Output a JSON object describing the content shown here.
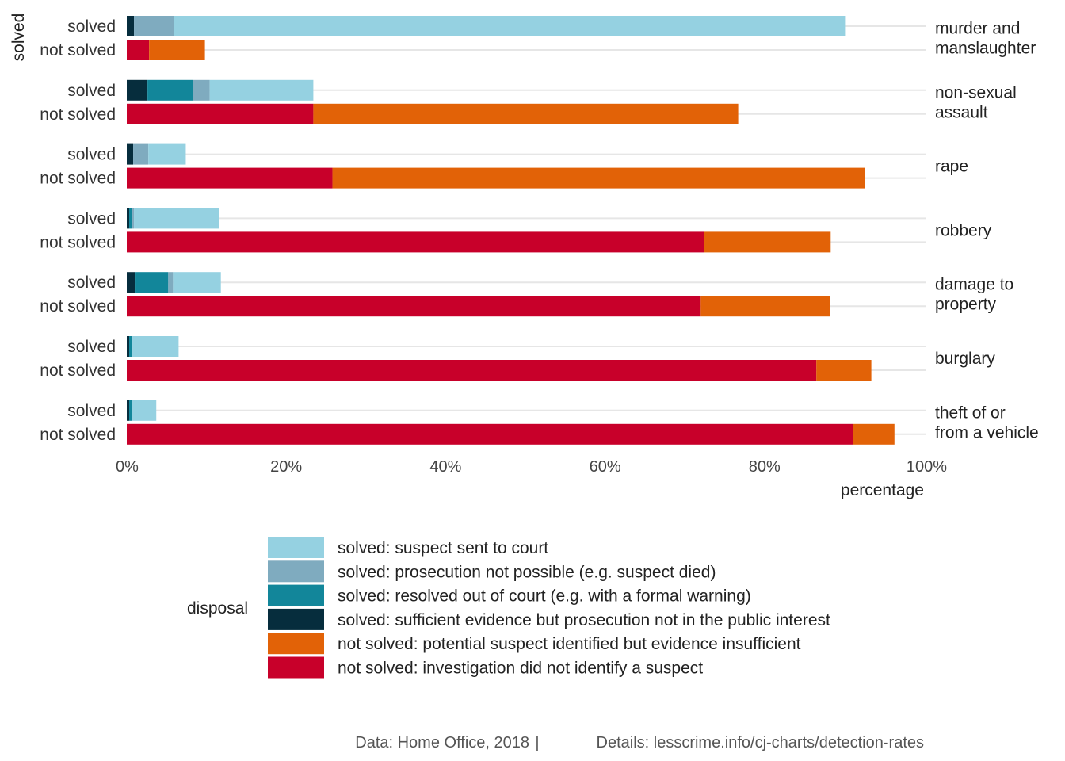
{
  "chart_data": {
    "type": "bar",
    "orientation": "horizontal",
    "stacked": true,
    "facet_labels": [
      [
        "murder and",
        "manslaughter"
      ],
      [
        "non-sexual",
        "assault"
      ],
      [
        "rape"
      ],
      [
        "robbery"
      ],
      [
        "damage to",
        "property"
      ],
      [
        "burglary"
      ],
      [
        "theft of or",
        "from a vehicle"
      ]
    ],
    "row_labels": [
      "solved",
      "not solved"
    ],
    "y_axis_title": "solved",
    "x_axis_title": "percentage",
    "x_ticks": [
      0,
      20,
      40,
      60,
      80,
      100
    ],
    "x_tick_labels": [
      "0%",
      "20%",
      "40%",
      "60%",
      "80%",
      "100%"
    ],
    "xlim": [
      0,
      100
    ],
    "grid": true,
    "series": [
      {
        "name": "solved: suspect sent to court",
        "color": "#95d1e1"
      },
      {
        "name": "solved: prosecution not possible (e.g. suspect died)",
        "color": "#7fabbf"
      },
      {
        "name": "solved: resolved out of court (e.g. with a formal warning)",
        "color": "#12869a"
      },
      {
        "name": "solved: sufficient evidence but prosecution not in the public interest",
        "color": "#062d3d"
      },
      {
        "name": "not solved: potential suspect identified but evidence insufficient",
        "color": "#e26207"
      },
      {
        "name": "not solved: investigation did not identify a suspect",
        "color": "#c8002a"
      }
    ],
    "stack_order_solved": [
      "solved: sufficient evidence but prosecution not in the public interest",
      "solved: resolved out of court (e.g. with a formal warning)",
      "solved: prosecution not possible (e.g. suspect died)",
      "solved: suspect sent to court"
    ],
    "stack_order_not_solved": [
      "not solved: investigation did not identify a suspect",
      "not solved: potential suspect identified but evidence insufficient"
    ],
    "values": [
      {
        "solved": [
          0.9,
          0.0,
          5.0,
          84.2
        ],
        "not_solved": [
          2.8,
          7.0
        ]
      },
      {
        "solved": [
          2.6,
          5.7,
          2.1,
          13.0
        ],
        "not_solved": [
          23.4,
          53.3
        ]
      },
      {
        "solved": [
          0.8,
          0.0,
          1.9,
          4.7
        ],
        "not_solved": [
          25.8,
          66.8
        ]
      },
      {
        "solved": [
          0.3,
          0.4,
          0.2,
          10.7
        ],
        "not_solved": [
          72.4,
          15.9
        ]
      },
      {
        "solved": [
          1.0,
          4.2,
          0.6,
          6.0
        ],
        "not_solved": [
          72.0,
          16.2
        ]
      },
      {
        "solved": [
          0.3,
          0.4,
          0.0,
          5.8
        ],
        "not_solved": [
          86.5,
          6.9
        ]
      },
      {
        "solved": [
          0.3,
          0.3,
          0.0,
          3.1
        ],
        "not_solved": [
          91.1,
          5.2
        ]
      }
    ]
  },
  "legend": {
    "title": "disposal",
    "items": [
      "solved: suspect sent to court",
      "solved: prosecution not possible (e.g. suspect died)",
      "solved: resolved out of court (e.g. with a formal warning)",
      "solved: sufficient evidence but prosecution not in the public interest",
      "not solved: potential suspect identified but evidence insufficient",
      "not solved: investigation did not identify a suspect"
    ],
    "colors": [
      "#95d1e1",
      "#7fabbf",
      "#12869a",
      "#062d3d",
      "#e26207",
      "#c8002a"
    ]
  },
  "caption": {
    "source": "Data: Home Office, 2018",
    "separator": "|",
    "details": "Details: lesscrime.info/cj-charts/detection-rates"
  }
}
